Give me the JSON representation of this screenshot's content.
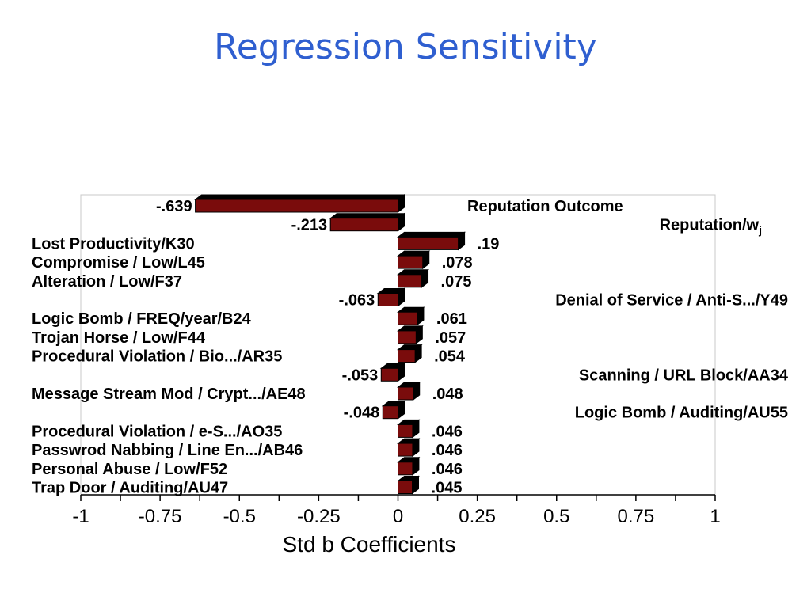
{
  "slide": {
    "title": "Regression Sensitivity"
  },
  "chart_data": {
    "type": "bar",
    "orientation": "horizontal",
    "xlabel": "Std b Coefficients",
    "xlim": [
      -1,
      1
    ],
    "xticks": [
      -1,
      -0.75,
      -0.5,
      -0.25,
      0,
      0.25,
      0.5,
      0.75,
      1
    ],
    "xtick_labels": [
      "-1",
      "-0.75",
      "-0.5",
      "-0.25",
      "0",
      "0.25",
      "0.5",
      "0.75",
      "1"
    ],
    "bar_color": "#7a0c0c",
    "bars": [
      {
        "category": "Reputation Outcome",
        "value": -0.639,
        "value_label": "-.639"
      },
      {
        "category": "Reputation/w",
        "category_sub": "j",
        "value": -0.213,
        "value_label": "-.213"
      },
      {
        "category": "Lost Productivity/K30",
        "value": 0.19,
        "value_label": ".19"
      },
      {
        "category": "Compromise / Low/L45",
        "value": 0.078,
        "value_label": ".078"
      },
      {
        "category": "Alteration / Low/F37",
        "value": 0.075,
        "value_label": ".075"
      },
      {
        "category": "Denial of Service / Anti-S.../Y49",
        "value": -0.063,
        "value_label": "-.063"
      },
      {
        "category": "Logic Bomb / FREQ/year/B24",
        "value": 0.061,
        "value_label": ".061"
      },
      {
        "category": "Trojan Horse / Low/F44",
        "value": 0.057,
        "value_label": ".057"
      },
      {
        "category": "Procedural Violation / Bio.../AR35",
        "value": 0.054,
        "value_label": ".054"
      },
      {
        "category": "Scanning / URL Block/AA34",
        "value": -0.053,
        "value_label": "-.053"
      },
      {
        "category": "Message Stream Mod / Crypt.../AE48",
        "value": 0.048,
        "value_label": ".048"
      },
      {
        "category": "Logic Bomb / Auditing/AU55",
        "value": -0.048,
        "value_label": "-.048"
      },
      {
        "category": "Procedural Violation / e-S.../AO35",
        "value": 0.046,
        "value_label": ".046"
      },
      {
        "category": "Passwrod Nabbing / Line En.../AB46",
        "value": 0.046,
        "value_label": ".046"
      },
      {
        "category": "Personal Abuse / Low/F52",
        "value": 0.046,
        "value_label": ".046"
      },
      {
        "category": "Trap Door / Auditing/AU47",
        "value": 0.045,
        "value_label": ".045"
      }
    ]
  }
}
